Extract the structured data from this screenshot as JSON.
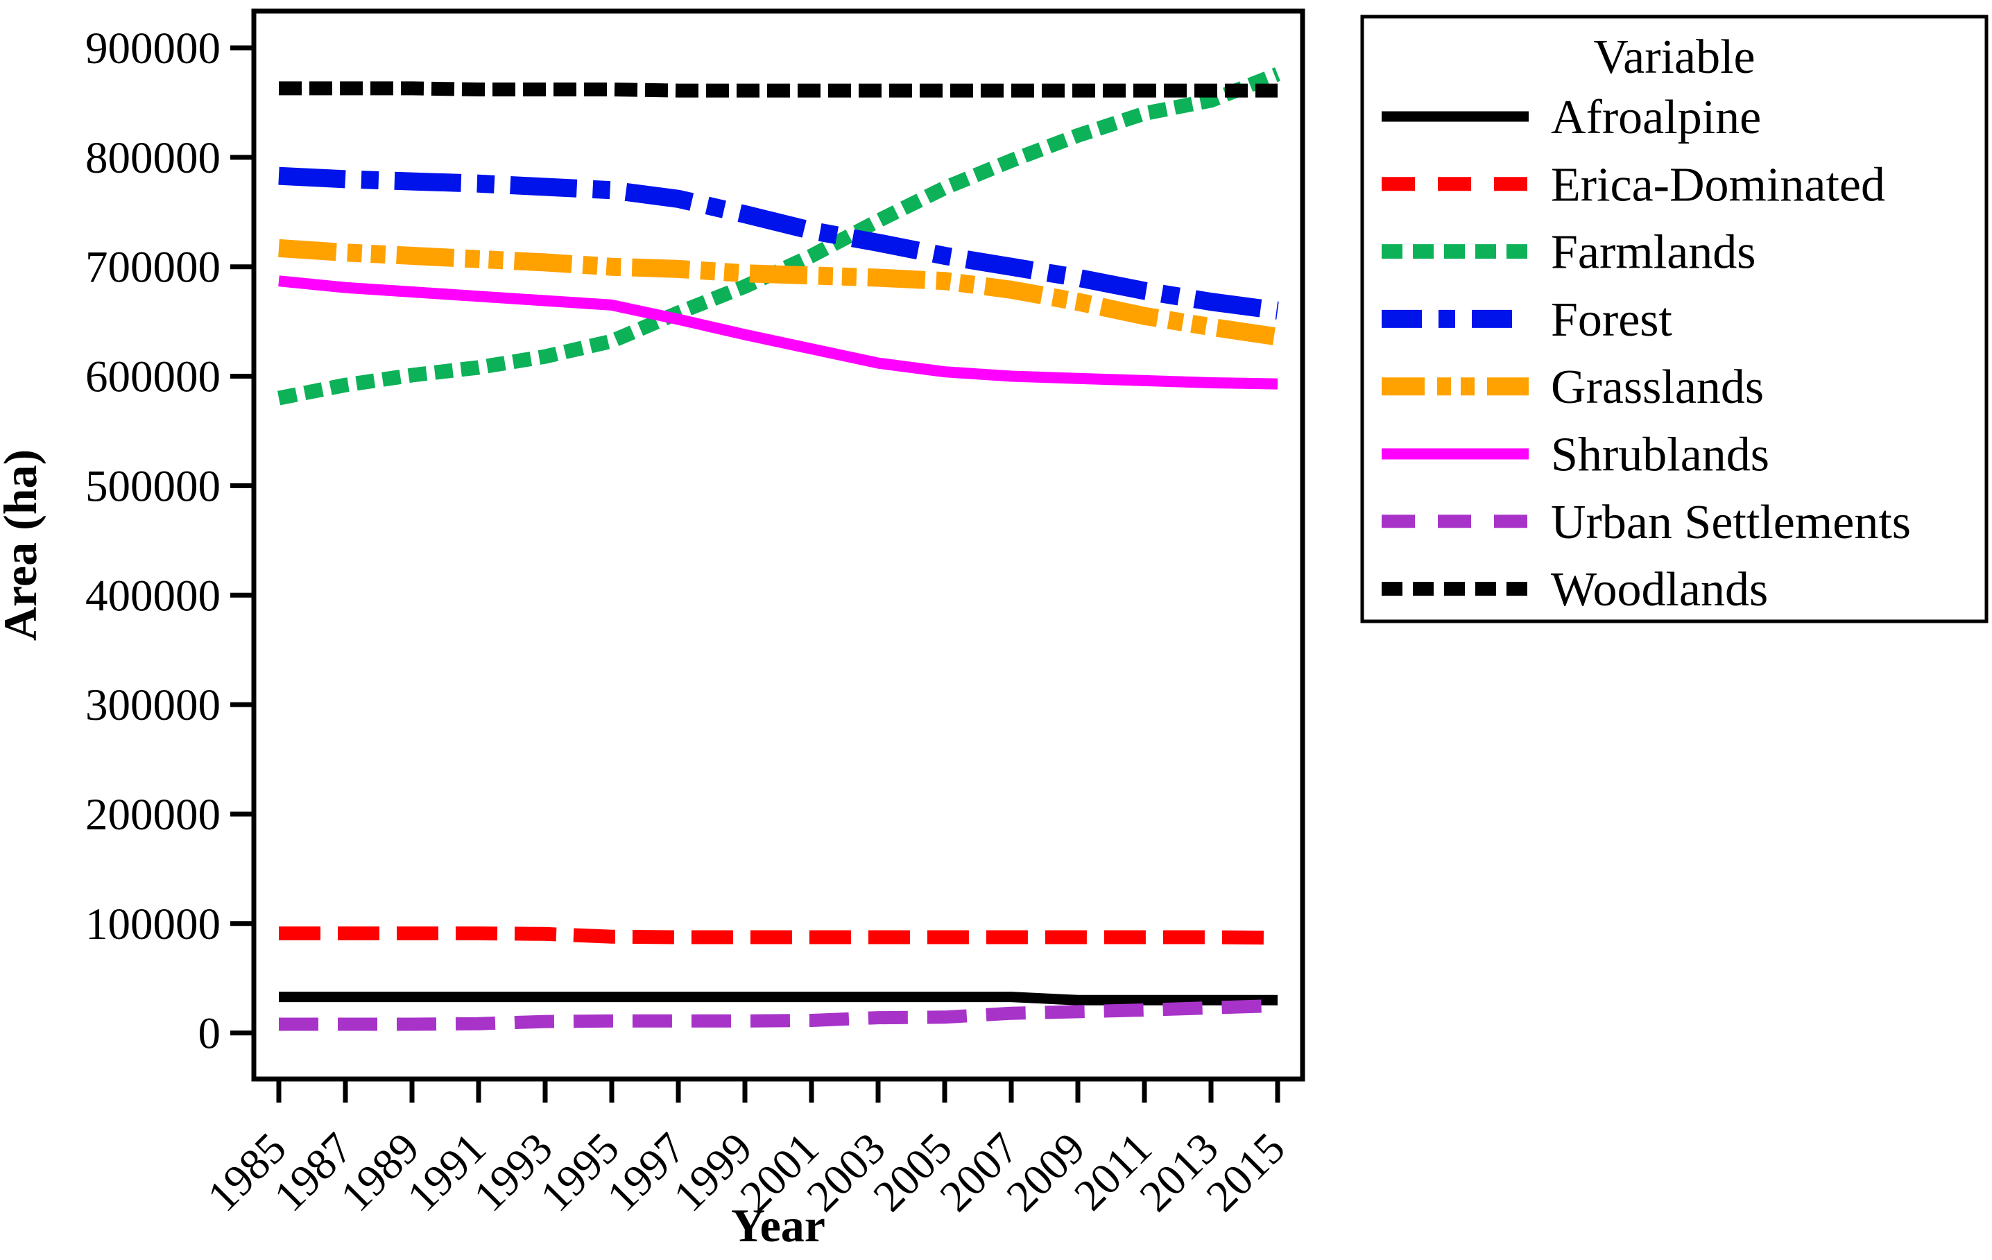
{
  "legend": {
    "title": "Variable",
    "border_color": "#000000",
    "background": "#ffffff"
  },
  "axes": {
    "x_title": "Year",
    "y_title": "Area (ha)",
    "y_tick_values": [
      0,
      100000,
      200000,
      300000,
      400000,
      500000,
      600000,
      700000,
      800000,
      900000
    ],
    "x_tick_values": [
      1985,
      1987,
      1989,
      1991,
      1993,
      1995,
      1997,
      1999,
      2001,
      2003,
      2005,
      2007,
      2009,
      2011,
      2013,
      2015
    ]
  },
  "chart_data": {
    "type": "line",
    "title": "",
    "xlabel": "Year",
    "ylabel": "Area (ha)",
    "xlim": [
      1983.7,
      2016.5
    ],
    "ylim": [
      0,
      900000
    ],
    "grid": false,
    "legend_position": "upper right outside",
    "legend_title": "Variable",
    "x": [
      1985,
      1987,
      1989,
      1991,
      1993,
      1995,
      1997,
      1999,
      2001,
      2003,
      2005,
      2007,
      2009,
      2011,
      2013,
      2015
    ],
    "series": [
      {
        "name": "Afroalpine",
        "color": "#000000",
        "style": "solid",
        "width": 15,
        "dash": "",
        "legend_dash": "",
        "values": [
          33000,
          33000,
          33000,
          33000,
          33000,
          33000,
          33000,
          33000,
          33000,
          33000,
          33000,
          33000,
          30000,
          30000,
          30000,
          30000
        ]
      },
      {
        "name": "Erica-Dominated",
        "color": "#FF0000",
        "style": "dashed",
        "width": 20,
        "dash": "60 25",
        "legend_dash": "48 33",
        "values": [
          91000,
          91000,
          91000,
          91000,
          90500,
          88000,
          87500,
          87500,
          87500,
          87500,
          87500,
          87500,
          87500,
          87500,
          87500,
          87000
        ]
      },
      {
        "name": "Farmlands",
        "color": "#0DB158",
        "style": "dotted",
        "width": 21,
        "dash": "26 12",
        "legend_dash": "30 15",
        "values": [
          580000,
          592000,
          601000,
          608000,
          618000,
          632000,
          658000,
          682000,
          710000,
          742000,
          772000,
          797000,
          820000,
          840000,
          852000,
          876000
        ]
      },
      {
        "name": "Forest",
        "color": "#0013EB",
        "style": "dash-dot",
        "width": 26,
        "dash": "96 23 25 23",
        "legend_dash": "58 24 24 24",
        "values": [
          783000,
          780000,
          778000,
          776000,
          773000,
          770000,
          762000,
          748000,
          733000,
          722000,
          710000,
          700000,
          690000,
          678000,
          668000,
          660000
        ]
      },
      {
        "name": "Grasslands",
        "color": "#FFA200",
        "style": "dash-dot-dot",
        "width": 26,
        "dash": "83 16 21 13 21 16",
        "legend_dash": "62 18 20 14 20 18",
        "values": [
          717000,
          713000,
          710000,
          707000,
          704000,
          700000,
          698000,
          694000,
          692000,
          690000,
          687000,
          679000,
          668000,
          655000,
          645000,
          636000
        ]
      },
      {
        "name": "Shrublands",
        "color": "#FF00FF",
        "style": "solid",
        "width": 16,
        "dash": "",
        "legend_dash": "",
        "values": [
          687000,
          681000,
          677000,
          673000,
          669000,
          665000,
          652000,
          638000,
          625000,
          612000,
          604000,
          600000,
          598000,
          596000,
          594000,
          593000
        ]
      },
      {
        "name": "Urban Settlements",
        "color": "#A833C8",
        "style": "dashed",
        "width": 19,
        "dash": "57 28",
        "legend_dash": "48 33",
        "values": [
          8000,
          8000,
          8000,
          8500,
          10500,
          11000,
          11000,
          11000,
          11500,
          14000,
          14500,
          18000,
          19500,
          21000,
          23000,
          25000
        ]
      },
      {
        "name": "Woodlands",
        "color": "#000000",
        "style": "dotted",
        "width": 20,
        "dash": "33 11",
        "legend_dash": "30 15",
        "values": [
          863000,
          863000,
          863000,
          862000,
          862000,
          862000,
          861000,
          861000,
          861000,
          861000,
          861000,
          861000,
          861000,
          861000,
          861000,
          861000
        ]
      }
    ]
  }
}
